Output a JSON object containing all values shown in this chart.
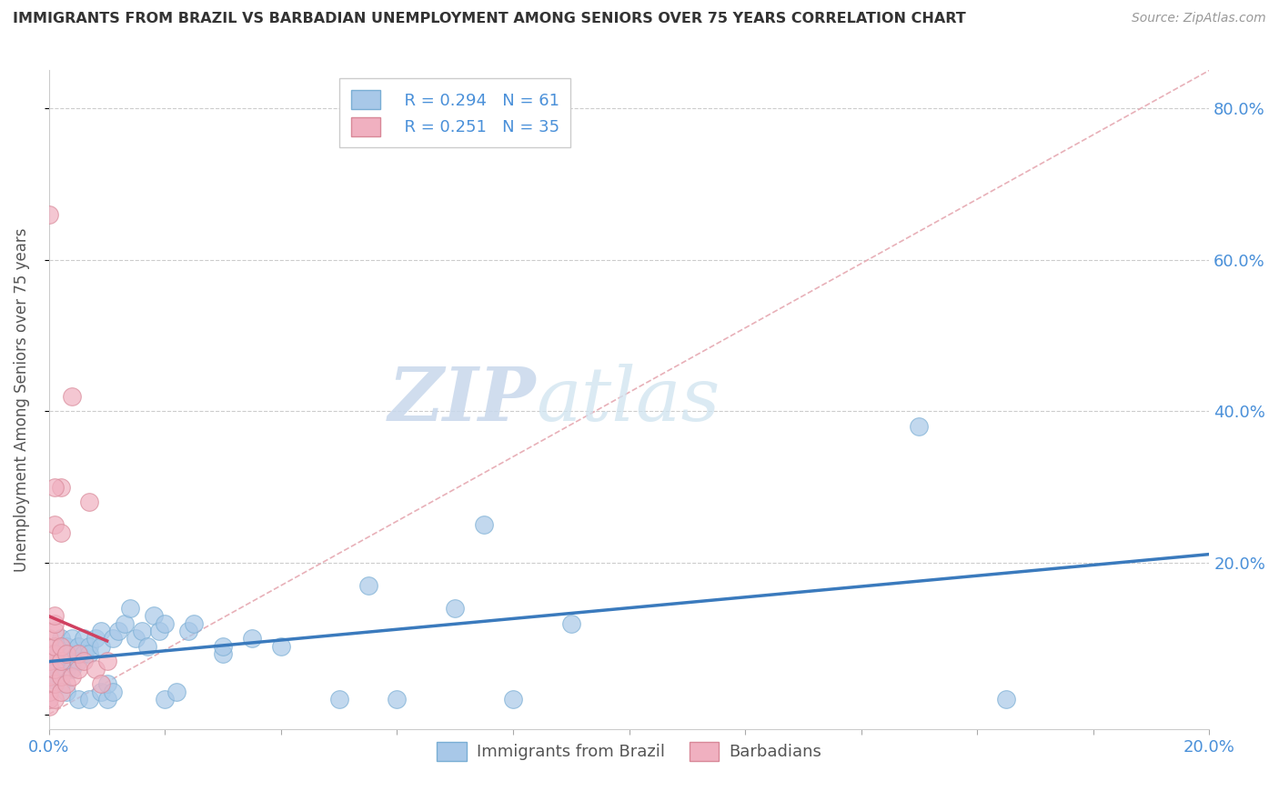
{
  "title": "IMMIGRANTS FROM BRAZIL VS BARBADIAN UNEMPLOYMENT AMONG SENIORS OVER 75 YEARS CORRELATION CHART",
  "source": "Source: ZipAtlas.com",
  "ylabel": "Unemployment Among Seniors over 75 years",
  "legend_r1": "R = 0.294",
  "legend_n1": "N = 61",
  "legend_r2": "R = 0.251",
  "legend_n2": "N = 35",
  "watermark_zip": "ZIP",
  "watermark_atlas": "atlas",
  "blue_color": "#a8c8e8",
  "blue_edge_color": "#7aaed4",
  "pink_color": "#f0b0c0",
  "pink_edge_color": "#d88898",
  "blue_line_color": "#3a7abd",
  "pink_line_color": "#d04060",
  "diag_color": "#e8b0b8",
  "blue_scatter": [
    [
      0.0,
      0.065
    ],
    [
      0.001,
      0.055
    ],
    [
      0.001,
      0.045
    ],
    [
      0.001,
      0.08
    ],
    [
      0.001,
      0.05
    ],
    [
      0.002,
      0.07
    ],
    [
      0.002,
      0.09
    ],
    [
      0.002,
      0.04
    ],
    [
      0.002,
      0.1
    ],
    [
      0.003,
      0.08
    ],
    [
      0.003,
      0.06
    ],
    [
      0.003,
      0.07
    ],
    [
      0.003,
      0.03
    ],
    [
      0.003,
      0.09
    ],
    [
      0.004,
      0.08
    ],
    [
      0.004,
      0.1
    ],
    [
      0.004,
      0.07
    ],
    [
      0.004,
      0.06
    ],
    [
      0.005,
      0.08
    ],
    [
      0.005,
      0.02
    ],
    [
      0.005,
      0.09
    ],
    [
      0.005,
      0.07
    ],
    [
      0.006,
      0.1
    ],
    [
      0.006,
      0.08
    ],
    [
      0.007,
      0.02
    ],
    [
      0.007,
      0.09
    ],
    [
      0.007,
      0.08
    ],
    [
      0.008,
      0.1
    ],
    [
      0.009,
      0.03
    ],
    [
      0.009,
      0.11
    ],
    [
      0.009,
      0.09
    ],
    [
      0.01,
      0.02
    ],
    [
      0.01,
      0.04
    ],
    [
      0.011,
      0.03
    ],
    [
      0.011,
      0.1
    ],
    [
      0.012,
      0.11
    ],
    [
      0.013,
      0.12
    ],
    [
      0.014,
      0.14
    ],
    [
      0.015,
      0.1
    ],
    [
      0.016,
      0.11
    ],
    [
      0.017,
      0.09
    ],
    [
      0.018,
      0.13
    ],
    [
      0.019,
      0.11
    ],
    [
      0.02,
      0.12
    ],
    [
      0.02,
      0.02
    ],
    [
      0.022,
      0.03
    ],
    [
      0.024,
      0.11
    ],
    [
      0.025,
      0.12
    ],
    [
      0.03,
      0.08
    ],
    [
      0.03,
      0.09
    ],
    [
      0.035,
      0.1
    ],
    [
      0.04,
      0.09
    ],
    [
      0.05,
      0.02
    ],
    [
      0.055,
      0.17
    ],
    [
      0.06,
      0.02
    ],
    [
      0.07,
      0.14
    ],
    [
      0.075,
      0.25
    ],
    [
      0.08,
      0.02
    ],
    [
      0.09,
      0.12
    ],
    [
      0.15,
      0.38
    ],
    [
      0.165,
      0.02
    ]
  ],
  "pink_scatter": [
    [
      0.0,
      0.01
    ],
    [
      0.0,
      0.02
    ],
    [
      0.0,
      0.03
    ],
    [
      0.0,
      0.05
    ],
    [
      0.0,
      0.07
    ],
    [
      0.0,
      0.08
    ],
    [
      0.0,
      0.1
    ],
    [
      0.001,
      0.02
    ],
    [
      0.001,
      0.04
    ],
    [
      0.001,
      0.06
    ],
    [
      0.001,
      0.08
    ],
    [
      0.001,
      0.09
    ],
    [
      0.001,
      0.11
    ],
    [
      0.001,
      0.12
    ],
    [
      0.001,
      0.13
    ],
    [
      0.001,
      0.25
    ],
    [
      0.002,
      0.03
    ],
    [
      0.002,
      0.05
    ],
    [
      0.002,
      0.07
    ],
    [
      0.002,
      0.09
    ],
    [
      0.002,
      0.3
    ],
    [
      0.003,
      0.04
    ],
    [
      0.003,
      0.08
    ],
    [
      0.004,
      0.05
    ],
    [
      0.004,
      0.42
    ],
    [
      0.005,
      0.06
    ],
    [
      0.005,
      0.08
    ],
    [
      0.006,
      0.07
    ],
    [
      0.007,
      0.28
    ],
    [
      0.008,
      0.06
    ],
    [
      0.009,
      0.04
    ],
    [
      0.01,
      0.07
    ],
    [
      0.0,
      0.66
    ],
    [
      0.001,
      0.3
    ],
    [
      0.002,
      0.24
    ]
  ],
  "xmin": 0.0,
  "xmax": 0.2,
  "ymin": -0.02,
  "ymax": 0.85,
  "y_ticks": [
    0.0,
    0.2,
    0.4,
    0.6,
    0.8
  ],
  "y_tick_labels": [
    "",
    "20.0%",
    "40.0%",
    "60.0%",
    "80.0%"
  ],
  "x_ticks": [
    0.0,
    0.02,
    0.04,
    0.06,
    0.08,
    0.1,
    0.12,
    0.14,
    0.16,
    0.18,
    0.2
  ],
  "figsize": [
    14.06,
    8.92
  ],
  "dpi": 100
}
